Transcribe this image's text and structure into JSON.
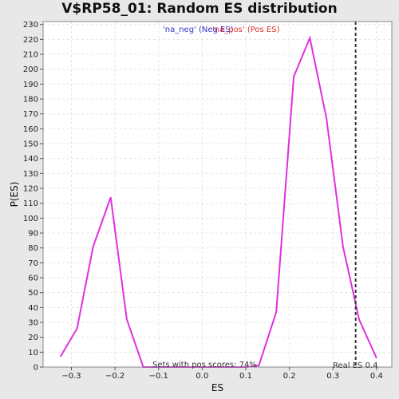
{
  "chart_data": {
    "type": "line",
    "title": "V$RP58_01: Random ES distribution",
    "xlabel": "ES",
    "ylabel": "P(ES)",
    "xlim": [
      -0.365,
      0.435
    ],
    "ylim": [
      0,
      232
    ],
    "x_ticks": [
      -0.3,
      -0.2,
      -0.1,
      0.0,
      0.1,
      0.2,
      0.3,
      0.4
    ],
    "x_tick_labels": [
      "−0.3",
      "−0.2",
      "−0.1",
      "0.0",
      "0.1",
      "0.2",
      "0.3",
      "0.4"
    ],
    "y_ticks": [
      0,
      10,
      20,
      30,
      40,
      50,
      60,
      70,
      80,
      90,
      100,
      110,
      120,
      130,
      140,
      150,
      160,
      170,
      180,
      190,
      200,
      210,
      220,
      230
    ],
    "grid": true,
    "legend": [
      {
        "label": "'na_neg' (Neg ES)",
        "color": "#3333cc"
      },
      {
        "label": "'na_pos' (Pos ES)",
        "color": "#e03030"
      }
    ],
    "series": [
      {
        "color": "#e030e0",
        "x": [
          -0.325,
          -0.287,
          -0.25,
          -0.21,
          -0.173,
          -0.135,
          -0.1,
          0.0,
          0.1,
          0.13,
          0.17,
          0.21,
          0.247,
          0.285,
          0.323,
          0.36,
          0.4
        ],
        "y": [
          7,
          26,
          81,
          114,
          32,
          0,
          0,
          0,
          0,
          1,
          37,
          195,
          221,
          167,
          81,
          32,
          6
        ]
      }
    ],
    "real_es": {
      "x": 0.352,
      "label": "Real ES 0.4",
      "color": "#333333"
    },
    "annotation": "Sets with pos scores: 74%"
  }
}
